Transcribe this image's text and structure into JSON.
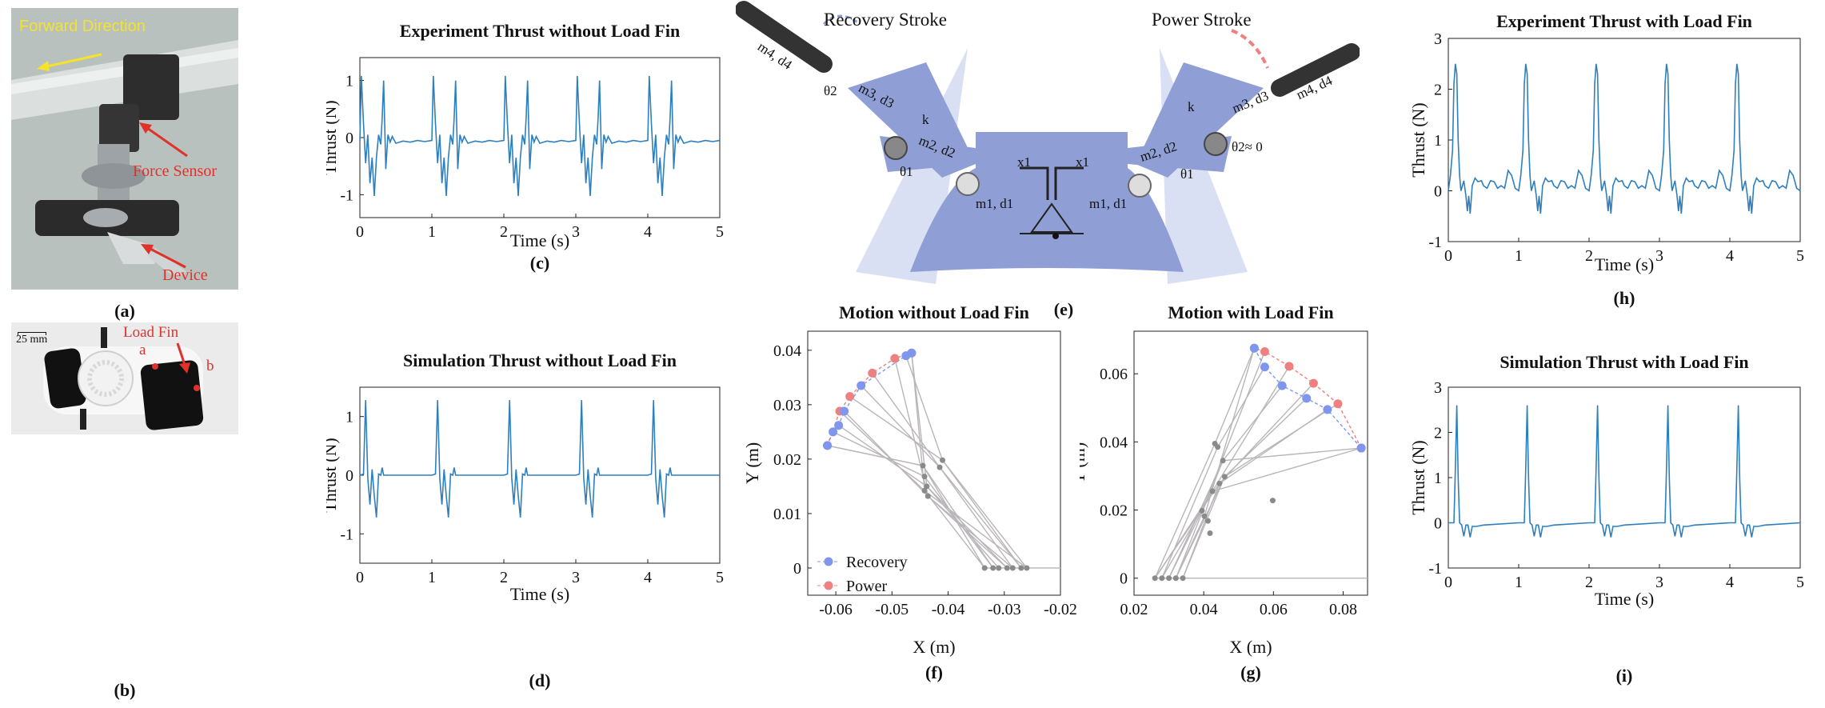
{
  "photo_a": {
    "label_forward": "Forward Direction",
    "label_force_sensor": "Force Sensor",
    "label_device": "Device",
    "caption": "(a)"
  },
  "photo_b": {
    "scale_text": "25 mm",
    "label_load_fin": "Load Fin",
    "label_a": "a",
    "label_b": "b",
    "caption": "(b)"
  },
  "schematic_e": {
    "recovery_label": "Recovery Stroke",
    "power_label": "Power Stroke",
    "left": {
      "m4": "m4, d4",
      "theta2": "θ2",
      "m3": "m3, d3",
      "k": "k",
      "m2": "m2, d2",
      "theta1": "θ1",
      "m1": "m1, d1",
      "x1": "x1"
    },
    "right": {
      "m4": "m4, d4",
      "theta2": "θ2≈ 0",
      "m3": "m3, d3",
      "k": "k",
      "m2": "m2, d2",
      "theta1": "θ1",
      "m1": "m1, d1",
      "x1": "x1"
    },
    "caption": "(e)"
  },
  "colors": {
    "line": "#2e7fbd",
    "recovery": "#7f96ee",
    "power": "#ee8080",
    "link": "#b9b5b9",
    "joint": "#8a8a8a",
    "fin": "#8f9fd6"
  },
  "chart_data": [
    {
      "id": "c",
      "type": "line",
      "title": "Experiment Thrust without Load Fin",
      "xlabel": "Time (s)",
      "ylabel": "Thrust (N)",
      "xlim": [
        0,
        5
      ],
      "ylim": [
        -1.4,
        1.4
      ],
      "xticks": [
        "0",
        "1",
        "2",
        "3",
        "4",
        "5"
      ],
      "yticks": [
        "-1",
        "0",
        "1"
      ],
      "caption": "(c)",
      "period": 1.0,
      "pattern": [
        [
          0,
          -0.05
        ],
        [
          0.02,
          1.08
        ],
        [
          0.05,
          0.25
        ],
        [
          0.08,
          -0.45
        ],
        [
          0.11,
          0.05
        ],
        [
          0.14,
          -0.8
        ],
        [
          0.17,
          -0.35
        ],
        [
          0.2,
          -1.02
        ],
        [
          0.23,
          -0.35
        ],
        [
          0.26,
          0.05
        ],
        [
          0.29,
          -0.12
        ],
        [
          0.31,
          0.35
        ],
        [
          0.33,
          1.0
        ],
        [
          0.36,
          -0.55
        ],
        [
          0.39,
          0.05
        ],
        [
          0.42,
          -0.08
        ],
        [
          0.45,
          0.02
        ],
        [
          0.5,
          -0.1
        ],
        [
          0.6,
          -0.06
        ],
        [
          0.7,
          -0.08
        ],
        [
          0.8,
          -0.05
        ],
        [
          0.9,
          -0.07
        ],
        [
          1.0,
          -0.05
        ]
      ]
    },
    {
      "id": "d",
      "type": "line",
      "title": "Simulation Thrust without Load Fin",
      "xlabel": "Time (s)",
      "ylabel": "Thrust (N)",
      "xlim": [
        0,
        5
      ],
      "ylim": [
        -1.5,
        1.5
      ],
      "xticks": [
        "0",
        "1",
        "2",
        "3",
        "4",
        "5"
      ],
      "yticks": [
        "-1",
        "0",
        "1"
      ],
      "caption": "(d)",
      "period": 1.0,
      "pattern": [
        [
          0,
          0
        ],
        [
          0.05,
          0.02
        ],
        [
          0.08,
          1.28
        ],
        [
          0.11,
          -0.05
        ],
        [
          0.14,
          -0.5
        ],
        [
          0.17,
          0.1
        ],
        [
          0.2,
          -0.35
        ],
        [
          0.23,
          -0.72
        ],
        [
          0.26,
          0.02
        ],
        [
          0.29,
          0.0
        ],
        [
          0.31,
          0.13
        ],
        [
          0.33,
          0.0
        ],
        [
          0.4,
          0.0
        ],
        [
          1.0,
          0.0
        ]
      ]
    },
    {
      "id": "f",
      "type": "scatter",
      "title": "Motion without Load Fin",
      "xlabel": "X (m)",
      "ylabel": "Y (m)",
      "xlim": [
        -0.065,
        -0.02
      ],
      "ylim": [
        -0.005,
        0.0435
      ],
      "xticks": [
        "-0.06",
        "-0.05",
        "-0.04",
        "-0.03",
        "-0.02"
      ],
      "yticks": [
        "0",
        "0.01",
        "0.02",
        "0.03",
        "0.04"
      ],
      "caption": "(f)",
      "legend": [
        {
          "name": "Recovery"
        },
        {
          "name": "Power"
        }
      ],
      "recovery": [
        [
          -0.0615,
          0.0225
        ],
        [
          -0.0605,
          0.025
        ],
        [
          -0.0595,
          0.0262
        ],
        [
          -0.0585,
          0.0288
        ],
        [
          -0.0555,
          0.0335
        ],
        [
          -0.0475,
          0.039
        ],
        [
          -0.0465,
          0.0395
        ]
      ],
      "power": [
        [
          -0.0465,
          0.0395
        ],
        [
          -0.0495,
          0.0385
        ],
        [
          -0.0535,
          0.0358
        ],
        [
          -0.0575,
          0.0315
        ],
        [
          -0.0593,
          0.0288
        ],
        [
          -0.0615,
          0.0225
        ]
      ],
      "mid": [
        [
          -0.0445,
          0.0188
        ],
        [
          -0.0442,
          0.0168
        ],
        [
          -0.0438,
          0.015
        ],
        [
          -0.0436,
          0.0132
        ],
        [
          -0.0415,
          0.0185
        ],
        [
          -0.041,
          0.0198
        ],
        [
          -0.0442,
          0.0142
        ]
      ],
      "base": [
        [
          -0.0335,
          0
        ],
        [
          -0.032,
          0
        ],
        [
          -0.031,
          0
        ],
        [
          -0.0295,
          0
        ],
        [
          -0.0285,
          0
        ],
        [
          -0.027,
          0
        ],
        [
          -0.026,
          0
        ]
      ]
    },
    {
      "id": "g",
      "type": "scatter",
      "title": "Motion with Load Fin",
      "xlabel": "X (m)",
      "ylabel": "Y (m)",
      "xlim": [
        0.02,
        0.087
      ],
      "ylim": [
        -0.005,
        0.0725
      ],
      "xticks": [
        "0.02",
        "0.04",
        "0.06",
        "0.08"
      ],
      "yticks": [
        "0",
        "0.02",
        "0.04",
        "0.06"
      ],
      "caption": "(g)",
      "recovery": [
        [
          0.0545,
          0.0675
        ],
        [
          0.0575,
          0.062
        ],
        [
          0.0625,
          0.0565
        ],
        [
          0.0695,
          0.0528
        ],
        [
          0.0755,
          0.0495
        ],
        [
          0.0852,
          0.0382
        ]
      ],
      "power": [
        [
          0.0852,
          0.0382
        ],
        [
          0.0785,
          0.0512
        ],
        [
          0.0715,
          0.0572
        ],
        [
          0.0645,
          0.0622
        ],
        [
          0.0575,
          0.0665
        ],
        [
          0.0545,
          0.0675
        ]
      ],
      "mid": [
        [
          0.0432,
          0.0395
        ],
        [
          0.044,
          0.0385
        ],
        [
          0.0455,
          0.0345
        ],
        [
          0.046,
          0.0298
        ],
        [
          0.0445,
          0.0278
        ],
        [
          0.0425,
          0.0255
        ],
        [
          0.0395,
          0.0198
        ],
        [
          0.0402,
          0.0182
        ],
        [
          0.0412,
          0.0168
        ],
        [
          0.0418,
          0.0132
        ],
        [
          0.0598,
          0.0228
        ]
      ],
      "base": [
        [
          0.026,
          0
        ],
        [
          0.028,
          0
        ],
        [
          0.03,
          0
        ],
        [
          0.032,
          0
        ],
        [
          0.034,
          0
        ]
      ]
    },
    {
      "id": "h",
      "type": "line",
      "title": "Experiment Thrust with Load Fin",
      "xlabel": "Time (s)",
      "ylabel": "Thrust (N)",
      "xlim": [
        0,
        5
      ],
      "ylim": [
        -1,
        3
      ],
      "xticks": [
        "0",
        "1",
        "2",
        "3",
        "4",
        "5"
      ],
      "yticks": [
        "-1",
        "0",
        "1",
        "2",
        "3"
      ],
      "caption": "(h)",
      "period": 1.0,
      "pattern": [
        [
          0,
          0.0
        ],
        [
          0.03,
          0.3
        ],
        [
          0.06,
          0.8
        ],
        [
          0.08,
          2.1
        ],
        [
          0.1,
          2.5
        ],
        [
          0.12,
          2.3
        ],
        [
          0.14,
          1.0
        ],
        [
          0.16,
          0.3
        ],
        [
          0.18,
          0.0
        ],
        [
          0.22,
          0.2
        ],
        [
          0.25,
          -0.1
        ],
        [
          0.27,
          -0.4
        ],
        [
          0.29,
          -0.1
        ],
        [
          0.31,
          -0.45
        ],
        [
          0.34,
          0.1
        ],
        [
          0.38,
          0.25
        ],
        [
          0.42,
          0.18
        ],
        [
          0.47,
          0.2
        ],
        [
          0.5,
          0.1
        ],
        [
          0.55,
          0.05
        ],
        [
          0.6,
          0.2
        ],
        [
          0.65,
          0.18
        ],
        [
          0.7,
          0.05
        ],
        [
          0.75,
          0.1
        ],
        [
          0.8,
          0.05
        ],
        [
          0.85,
          0.4
        ],
        [
          0.9,
          0.3
        ],
        [
          0.95,
          0.05
        ],
        [
          1.0,
          0.0
        ]
      ]
    },
    {
      "id": "i",
      "type": "line",
      "title": "Simulation Thrust with Load Fin",
      "xlabel": "Time (s)",
      "ylabel": "Thrust (N)",
      "xlim": [
        0,
        5
      ],
      "ylim": [
        -1,
        3
      ],
      "xticks": [
        "0",
        "1",
        "2",
        "3",
        "4",
        "5"
      ],
      "yticks": [
        "-1",
        "0",
        "1",
        "2",
        "3"
      ],
      "caption": "(i)",
      "period": 1.0,
      "pattern": [
        [
          0,
          0.0
        ],
        [
          0.08,
          0.0
        ],
        [
          0.1,
          1.2
        ],
        [
          0.12,
          2.6
        ],
        [
          0.14,
          1.0
        ],
        [
          0.16,
          0.0
        ],
        [
          0.19,
          -0.05
        ],
        [
          0.22,
          -0.3
        ],
        [
          0.25,
          -0.05
        ],
        [
          0.28,
          -0.05
        ],
        [
          0.31,
          -0.32
        ],
        [
          0.34,
          -0.08
        ],
        [
          0.4,
          -0.08
        ],
        [
          0.5,
          -0.05
        ],
        [
          0.7,
          -0.03
        ],
        [
          1.0,
          0.0
        ]
      ]
    }
  ]
}
